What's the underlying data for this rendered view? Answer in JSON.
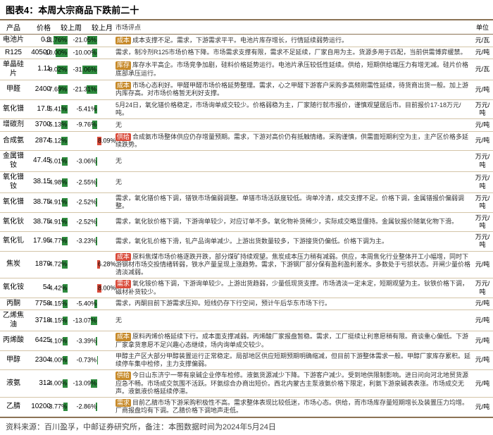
{
  "title": "图表4：本周大宗商品下跌前二十",
  "footer": "资料来源：百川盈孚，中邮证券研究所，备注：本图数据时间为2024年5月24日",
  "colors": {
    "green": "#2e8b3e",
    "red": "#d94b3a",
    "tag_amber": "#c78a2a",
    "tag_red": "#d94b3a",
    "border": "#8b7355"
  },
  "columns": [
    "产品",
    "价格",
    "较上周",
    "较上月",
    "市场评点",
    "单位"
  ],
  "week_scale": 12,
  "month_scale": 32,
  "rows": [
    {
      "prod": "电池片",
      "price": "0.3",
      "week": -11.76,
      "month": -21.05,
      "tags": [
        {
          "t": "成本",
          "c": "tag_amber"
        }
      ],
      "comment": "成本支撑不足。需求，下游需求平平。电池片库存增长，行情延续弱势运行。",
      "unit": "元/瓦"
    },
    {
      "prod": "R125",
      "price": "40500",
      "week": -10.0,
      "month": -10.0,
      "tags": [],
      "comment": "需求，制冷剂R125市场价格下降。市场需求支撑有限，需求不足延续，厂家自用为主。货源多用于匹配，当前供需博弈缓禁。",
      "unit": "元/吨"
    },
    {
      "prod": "单晶硅片",
      "price": "1.11",
      "week": -9.02,
      "month": -31.06,
      "tags": [
        {
          "t": "库存",
          "c": "tag_amber"
        }
      ],
      "comment": "库存水平高企。市场竞争加剧，硅料价格延势运行。电池片承压较低性延续。供给，短期供给端压力有增无减。硅片价格底部承压运行。",
      "unit": "元/瓦"
    },
    {
      "prod": "甲醛",
      "price": "2400",
      "week": -7.69,
      "month": -21.31,
      "tags": [
        {
          "t": "成本",
          "c": "tag_amber"
        }
      ],
      "comment": "市场心态利好。甲醛甲醛市场价格延势整理。需求，心之甲醛下游客户采购多高频刚需性延续，待货商出货一般。加上游内库存高。对市场价格暂无利好支撑。",
      "unit": "元/吨"
    },
    {
      "prod": "氧化镨",
      "price": "17.5",
      "week": -5.41,
      "month": -5.41,
      "tags": [],
      "comment": "5月24日，氧化镨价格稳定，市场询单成交较少。价格弱稳为主，厂家随行就市报价，谨慎观望居后市。目前报价17-18万元/吨。",
      "unit": "万元/吨"
    },
    {
      "prod": "增碳剂",
      "price": "3700",
      "week": -5.13,
      "month": -9.76,
      "tags": [],
      "comment": "无",
      "unit": "元/吨"
    },
    {
      "prod": "合成氨",
      "price": "2874",
      "week": -5.12,
      "month": 8.09,
      "tags": [
        {
          "t": "供给",
          "c": "tag_red"
        }
      ],
      "comment": "合成氨市场整体供应仍存增量预期。需求，下游对高价仍有抵触情绪。采购谨慎，供需面短期利空为主，主产区价格多延续跌势。",
      "unit": "元/吨"
    },
    {
      "prod": "金属镨钕",
      "price": "47.45",
      "week": -5.01,
      "month": -3.06,
      "tags": [],
      "comment": "无",
      "unit": "万元/吨"
    },
    {
      "prod": "氧化镨钕",
      "price": "38.15",
      "week": -4.98,
      "month": -2.55,
      "tags": [],
      "comment": "无",
      "unit": "万元/吨"
    },
    {
      "prod": "氧化镨",
      "price": "38.75",
      "week": -4.91,
      "month": -2.52,
      "tags": [],
      "comment": "需求，氧化镨价格下调，镨铁市场偏弱调整。单镨市场活跃度较低。询单冷清，成交支撑不足。价格下调，金属镨报价偏弱调整。",
      "unit": "万元/吨"
    },
    {
      "prod": "氧化钬",
      "price": "38.75",
      "week": -4.91,
      "month": -2.52,
      "tags": [],
      "comment": "需求，氧化钬价格下调，下游询单较少，对应订单不多。氧化物补货稀少，实际成交略显僵持。金属钬报价随氧化物下滑。",
      "unit": "万元/吨"
    },
    {
      "prod": "氧化钆",
      "price": "17.95",
      "week": -4.77,
      "month": -3.23,
      "tags": [],
      "comment": "需求，氧化钆价格下滑，钆产品询单减少。上游出货数量较多，下游接货仍偏低。价格下调为主。",
      "unit": "万元/吨"
    },
    {
      "prod": "焦炭",
      "price": "1879",
      "week": -4.72,
      "month": 6.28,
      "tags": [
        {
          "t": "成本",
          "c": "tag_red"
        }
      ],
      "comment": "原料焦煤市场价格逐跌开跌，部分煤矿持续观望。焦炭成本压力稍有减弱。供应，本周焦化行业整体开工小幅增，同时下游钢材市场交投情绪转弱，铁水产量呈现上涨趋势。需求，下游钢厂部分保有盈利盈利差水。多数处于亏损状态。开闸少量价格清淡减弱。",
      "unit": "元/吨"
    },
    {
      "prod": "氧化铵",
      "price": "54",
      "week": -4.42,
      "month": 8.0,
      "tags": [
        {
          "t": "需求",
          "c": "tag_red"
        }
      ],
      "comment": "氧化铵价格下调，下游询单较少。上游出货趋弱，少量低现货支撑。市场清淡一定未定，短期观望为主。钬铁价格下调，磁材补货较少。",
      "unit": "万元/吨"
    },
    {
      "prod": "丙酮",
      "price": "7758",
      "week": -4.15,
      "month": -5.4,
      "tags": [],
      "comment": "需求，丙酮目前下游需求压抑。短线仍存下行空间，预计午后华东市场下行。",
      "unit": "元/吨"
    },
    {
      "prod": "乙烯焦油",
      "price": "3718",
      "week": -4.15,
      "month": -13.07,
      "tags": [],
      "comment": "无",
      "unit": "元/吨"
    },
    {
      "prod": "丙烯酸",
      "price": "6425",
      "week": -4.1,
      "month": -3.39,
      "tags": [
        {
          "t": "成本",
          "c": "tag_amber"
        }
      ],
      "comment": "原料丙烯价格延续下行。成本面支撑减弱。丙烯酸厂家报盘暂稳。需求，工厂挺续让利意愿稍有限。商谈重心偏低。下游厂家拿货意愿不足兴趣心态继续，场内询单成交较少。",
      "unit": "元/吨"
    },
    {
      "prod": "甲醇",
      "price": "2304",
      "week": -4.0,
      "month": -0.73,
      "tags": [],
      "comment": "甲醇主产区大部分甲醇装置运行正常稳定。局部地区供应短期预期明确缩减，但目前下游整体需求一般。甲醇厂家库存累积。延续停车集中检修，主力支撑偏弱。",
      "unit": "元/吨"
    },
    {
      "prod": "液氨",
      "price": "312",
      "week": -4.0,
      "month": -13.09,
      "tags": [
        {
          "t": "供给",
          "c": "tag_amber"
        }
      ],
      "comment": "今日山东济宁一带有泉碱企业停车检修。液氨货源减少下降。下游客户减少。受到地供限制影响。进日问向河北地贸货源应急不畅。市场成交氛围不活跃。环氨综合办商出短价。西北内蒙古主泵液氨价格下限定，利氨下游泉碱表表涨。市场成交无声。液氨液价格延续停滞。",
      "unit": "元/吨"
    },
    {
      "prod": "乙腈",
      "price": "10200",
      "week": -3.77,
      "month": -2.86,
      "tags": [
        {
          "t": "需求",
          "c": "tag_amber"
        }
      ],
      "comment": "目前乙腈市场下游采购积极性不高。需求整体表现比较低迷，市场心态。供给，而市场库存量短期增长及装置压力均增。厂商报盘均有下调。乙腈价格下调地声走低。",
      "unit": "元/吨"
    }
  ]
}
